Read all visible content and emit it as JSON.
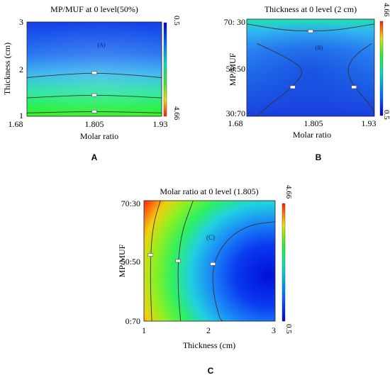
{
  "chart_data": [
    {
      "id": "A",
      "type": "heatmap",
      "panel_letter": "A",
      "title": "MP/MUF at 0 level(50%)",
      "xlabel": "Molar ratio",
      "ylabel": "Thickness (cm)",
      "x_ticks": [
        "1.68",
        "1.805",
        "1.93"
      ],
      "y_ticks": [
        "1",
        "2",
        "3"
      ],
      "xlim": [
        1.68,
        1.93
      ],
      "ylim": [
        1,
        3
      ],
      "colorbar": {
        "min_label": "4.66",
        "max_label": "0.5",
        "colors": [
          "#0000c8",
          "#0066ff",
          "#00e0c0",
          "#30f030",
          "#f0e000",
          "#ff2000"
        ]
      },
      "annotation": "(A)",
      "contours": [
        {
          "label": "",
          "points": [
            [
              1.68,
              1.07
            ],
            [
              1.75,
              1.09
            ],
            [
              1.805,
              1.1
            ],
            [
              1.86,
              1.09
            ],
            [
              1.93,
              1.07
            ]
          ]
        },
        {
          "label": "",
          "points": [
            [
              1.68,
              1.39
            ],
            [
              1.75,
              1.43
            ],
            [
              1.805,
              1.45
            ],
            [
              1.86,
              1.43
            ],
            [
              1.93,
              1.39
            ]
          ]
        },
        {
          "label": "",
          "points": [
            [
              1.68,
              1.82
            ],
            [
              1.75,
              1.89
            ],
            [
              1.805,
              1.92
            ],
            [
              1.86,
              1.89
            ],
            [
              1.93,
              1.82
            ]
          ]
        }
      ]
    },
    {
      "id": "B",
      "type": "heatmap",
      "panel_letter": "B",
      "title": "Thickness at 0 level (2 cm)",
      "xlabel": "Molar ratio",
      "ylabel": "MP/MUF",
      "x_ticks": [
        "1.68",
        "1.805",
        "1.93"
      ],
      "y_ticks": [
        "30:70",
        "50:50",
        "70: 30"
      ],
      "xlim": [
        1.68,
        1.93
      ],
      "ylim": [
        30,
        70
      ],
      "colorbar": {
        "min_label": "0.5",
        "max_label": "4.66",
        "colors": [
          "#0000c8",
          "#0066ff",
          "#00e0c0",
          "#30f030",
          "#f0e000",
          "#ff2000"
        ]
      },
      "annotation": "(B)",
      "contours": [
        {
          "label": "",
          "points": [
            [
              1.7,
              60
            ],
            [
              1.76,
              54
            ],
            [
              1.795,
              49
            ],
            [
              1.77,
              42
            ],
            [
              1.72,
              34
            ],
            [
              1.7,
              30
            ]
          ]
        },
        {
          "label": "",
          "points": [
            [
              1.925,
              60
            ],
            [
              1.89,
              55
            ],
            [
              1.875,
              49
            ],
            [
              1.89,
              42
            ],
            [
              1.925,
              34
            ],
            [
              1.93,
              31
            ]
          ]
        },
        {
          "label": "",
          "points": [
            [
              1.68,
              68
            ],
            [
              1.75,
              65.5
            ],
            [
              1.805,
              65
            ],
            [
              1.86,
              65.5
            ],
            [
              1.93,
              68
            ]
          ]
        }
      ]
    },
    {
      "id": "C",
      "type": "heatmap",
      "panel_letter": "C",
      "title": "Molar ratio at  0 level (1.805)",
      "xlabel": "Thickness (cm)",
      "ylabel": "MP/MUF",
      "x_ticks": [
        "1",
        "2",
        "3"
      ],
      "y_ticks": [
        "0:70",
        "50:50",
        "70:30"
      ],
      "xlim": [
        1,
        3
      ],
      "ylim": [
        30,
        70
      ],
      "colorbar": {
        "min_label": "0.5",
        "max_label": "4.66",
        "colors": [
          "#0000c8",
          "#0066ff",
          "#00e0c0",
          "#30f030",
          "#f0e000",
          "#ff2000"
        ]
      },
      "annotation": "(C)",
      "contours": [
        {
          "label": "",
          "points": [
            [
              1.25,
              70
            ],
            [
              1.14,
              62
            ],
            [
              1.1,
              52
            ],
            [
              1.1,
              40
            ],
            [
              1.12,
              30
            ]
          ]
        },
        {
          "label": "",
          "points": [
            [
              1.75,
              70
            ],
            [
              1.58,
              60
            ],
            [
              1.52,
              50
            ],
            [
              1.52,
              40
            ],
            [
              1.56,
              30
            ]
          ]
        },
        {
          "label": "",
          "points": [
            [
              3,
              63
            ],
            [
              2.6,
              62
            ],
            [
              2.25,
              57
            ],
            [
              2.05,
              49
            ],
            [
              2.05,
              40
            ],
            [
              2.15,
              31
            ],
            [
              2.2,
              30
            ]
          ]
        }
      ]
    }
  ]
}
